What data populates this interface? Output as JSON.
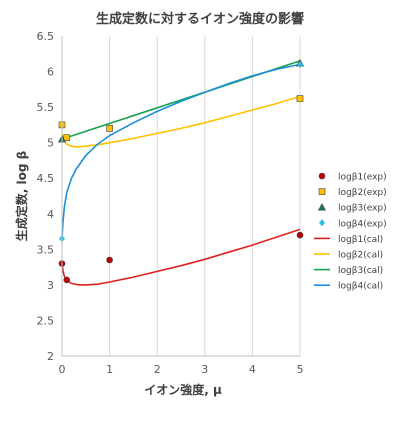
{
  "chart_data": {
    "type": "scatter",
    "title": "生成定数に対するイオン強度の影響",
    "xlabel": "イオン強度, μ",
    "ylabel": "生成定数, log β",
    "xlim": [
      0,
      5
    ],
    "ylim": [
      2,
      6.5
    ],
    "xticks": [
      0,
      1,
      2,
      3,
      4,
      5
    ],
    "yticks": [
      2,
      2.5,
      3,
      3.5,
      4,
      4.5,
      5,
      5.5,
      6,
      6.5
    ],
    "grid": "vertical",
    "legend_position": "right",
    "series": [
      {
        "name": "logβ1(exp)",
        "kind": "markers",
        "marker": "circle",
        "color": "#c00000",
        "x": [
          0,
          0.1,
          1,
          5
        ],
        "y": [
          3.3,
          3.07,
          3.35,
          3.7
        ]
      },
      {
        "name": "logβ2(exp)",
        "kind": "markers",
        "marker": "square",
        "color": "#ffc000",
        "x": [
          0,
          0.1,
          1,
          5
        ],
        "y": [
          5.25,
          5.07,
          5.2,
          5.62
        ]
      },
      {
        "name": "logβ3(exp)",
        "kind": "markers",
        "marker": "triangle",
        "color": "#1a7a5a",
        "x": [
          0,
          5
        ],
        "y": [
          5.05,
          6.12
        ]
      },
      {
        "name": "logβ4(exp)",
        "kind": "markers",
        "marker": "diamond",
        "color": "#2eb8e6",
        "x": [
          0,
          5
        ],
        "y": [
          3.65,
          6.1
        ]
      },
      {
        "name": "logβ1(cal)",
        "kind": "line",
        "color": "#e02020",
        "x": [
          0,
          0.02,
          0.05,
          0.1,
          0.2,
          0.35,
          0.5,
          0.75,
          1,
          1.5,
          2,
          2.5,
          3,
          3.5,
          4,
          4.5,
          5
        ],
        "y": [
          3.3,
          3.2,
          3.12,
          3.06,
          3.02,
          3.0,
          3.0,
          3.01,
          3.04,
          3.11,
          3.19,
          3.27,
          3.36,
          3.46,
          3.56,
          3.67,
          3.78
        ]
      },
      {
        "name": "logβ2(cal)",
        "kind": "line",
        "color": "#ffc000",
        "x": [
          0,
          0.05,
          0.1,
          0.2,
          0.3,
          0.5,
          0.75,
          1,
          1.5,
          2,
          2.5,
          3,
          3.5,
          4,
          4.5,
          5
        ],
        "y": [
          5.12,
          5.02,
          4.98,
          4.95,
          4.94,
          4.95,
          4.97,
          5.0,
          5.06,
          5.13,
          5.2,
          5.28,
          5.37,
          5.46,
          5.55,
          5.65
        ]
      },
      {
        "name": "logβ3(cal)",
        "kind": "line",
        "color": "#16a050",
        "x": [
          0,
          5
        ],
        "y": [
          5.05,
          6.15
        ]
      },
      {
        "name": "logβ4(cal)",
        "kind": "line",
        "color": "#1e90d6",
        "x": [
          0,
          0.02,
          0.05,
          0.1,
          0.2,
          0.3,
          0.5,
          0.75,
          1,
          1.5,
          2,
          2.5,
          3,
          3.5,
          4,
          4.5,
          5
        ],
        "y": [
          3.65,
          3.88,
          4.1,
          4.3,
          4.5,
          4.63,
          4.82,
          4.98,
          5.1,
          5.28,
          5.44,
          5.58,
          5.71,
          5.83,
          5.94,
          6.03,
          6.1
        ]
      }
    ]
  }
}
